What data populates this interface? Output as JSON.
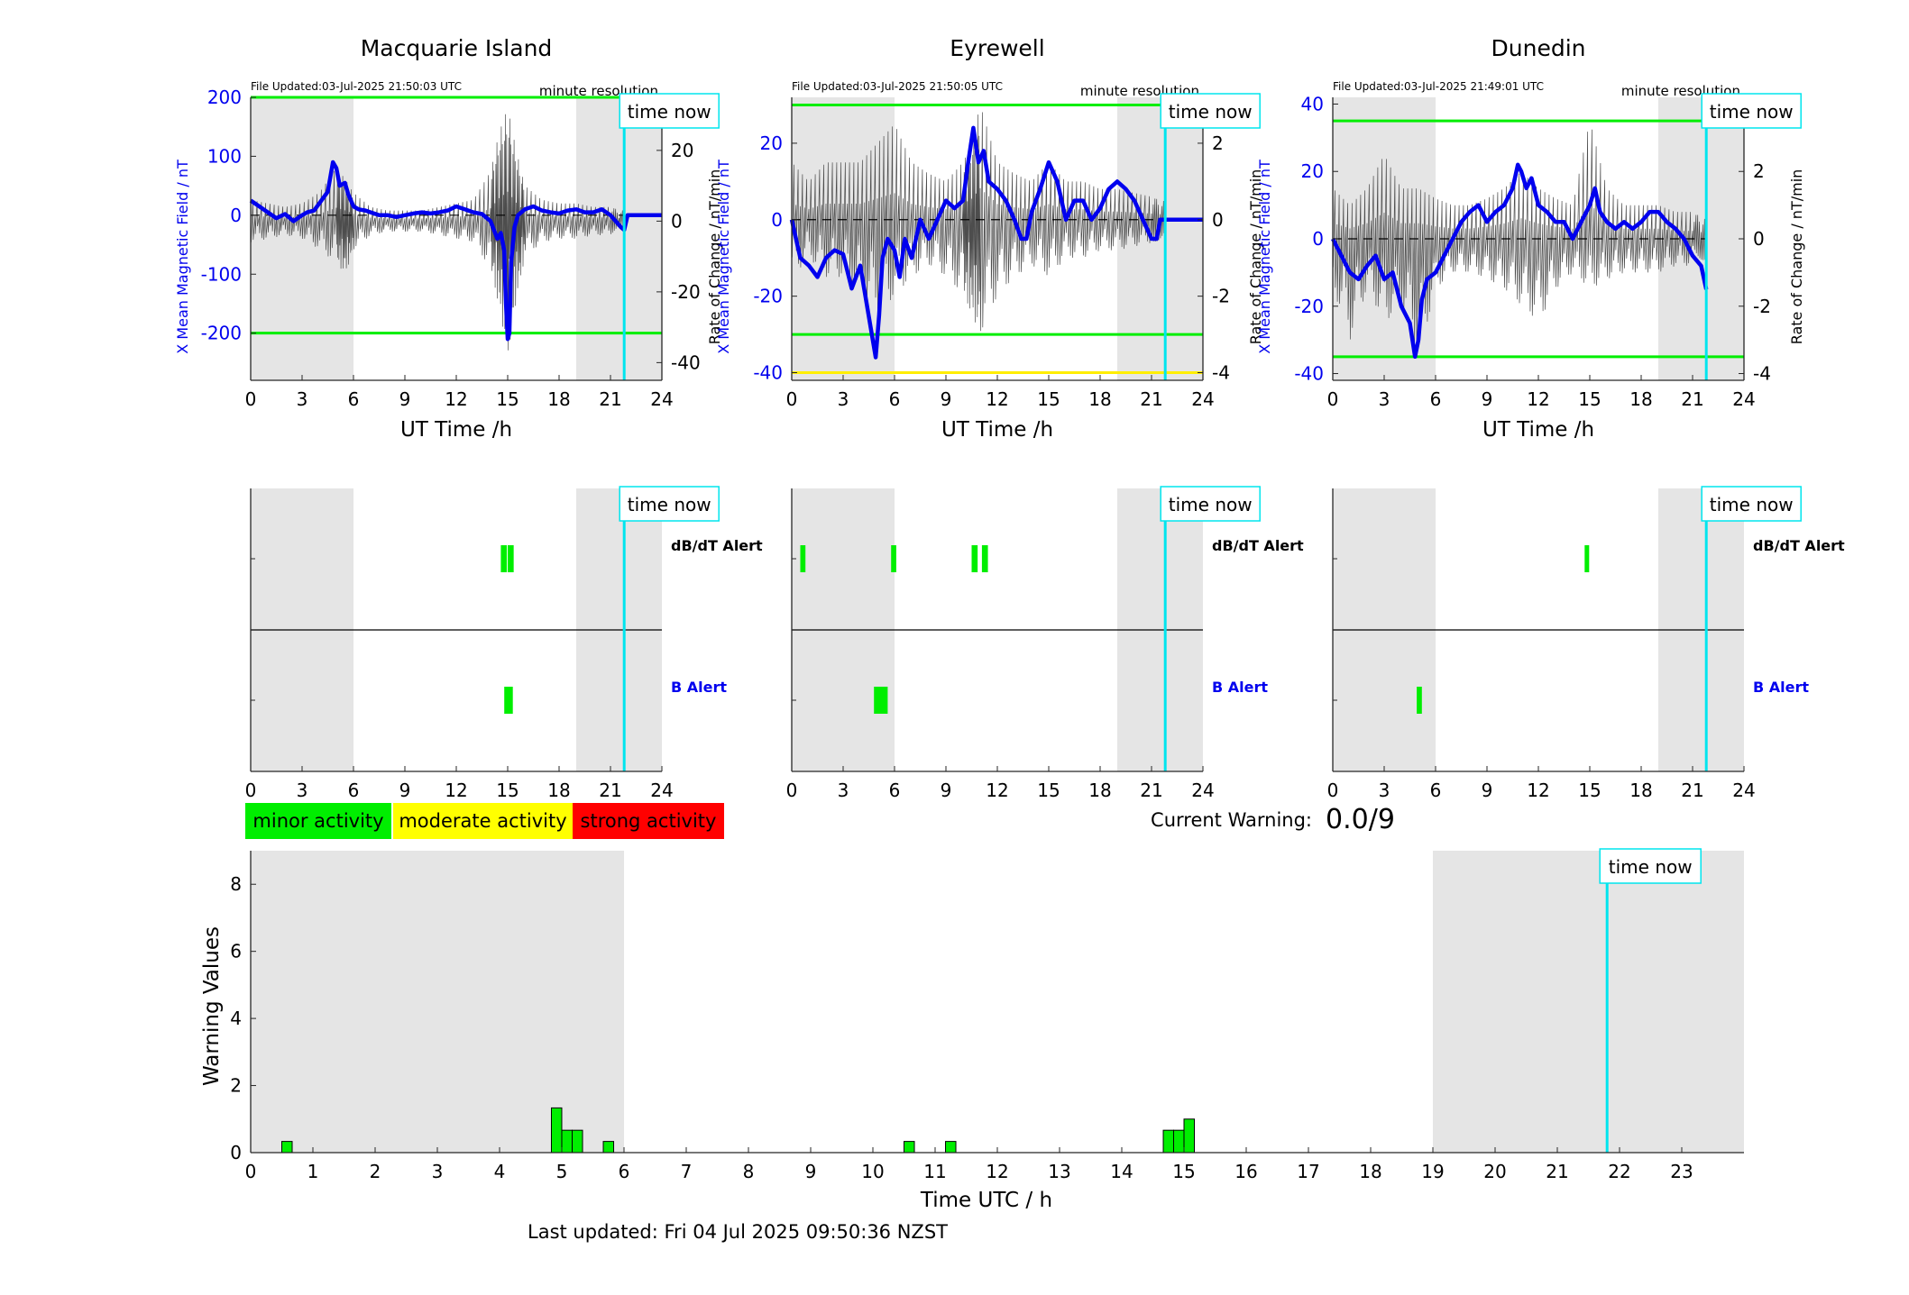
{
  "colors": {
    "night_shade": "#e5e5e5",
    "axis": "#262626",
    "mean_field": "#0000ee",
    "rate_trace": "#4d4d4d",
    "threshold_green": "#00ee00",
    "threshold_yellow": "#ffee00",
    "time_now": "#00e5ee",
    "minor": "#00ee00",
    "moderate": "#ffff00",
    "strong": "#ff0000",
    "b_alert_label": "#0000ee"
  },
  "time_now_label": "time now",
  "minute_resolution_label": "minute resolution",
  "x_ticks": [
    "0",
    "3",
    "6",
    "9",
    "12",
    "15",
    "18",
    "21",
    "24"
  ],
  "x_label": "UT Time /h",
  "left_axis_label": "X Mean Magnetic Field / nT",
  "right_axis_label": "Rate of Change / nT/min",
  "dbdt_alert_label": "dB/dT Alert",
  "b_alert_label": "B Alert",
  "legend": {
    "minor": "minor activity",
    "moderate": "moderate activity",
    "strong": "strong activity"
  },
  "current_warning": {
    "label": "Current Warning:",
    "value": "0.0/9"
  },
  "footer": "Last updated: Fri 04 Jul 2025 09:50:36 NZST",
  "chart_data": [
    {
      "type": "line",
      "title": "Macquarie Island",
      "file_updated": "File Updated:03-Jul-2025 21:50:03 UTC",
      "xlabel": "UT Time /h",
      "ylabel": "X Mean Magnetic Field / nT",
      "ylabel_right": "Rate of Change / nT/min",
      "xlim": [
        0,
        24
      ],
      "ylim": [
        -280,
        200
      ],
      "y_ticks": [
        -200,
        -100,
        0,
        100,
        200
      ],
      "ylim_right": [
        -45,
        35
      ],
      "y_ticks_right": [
        -40,
        -20,
        0,
        20
      ],
      "night_shading": [
        [
          0,
          6
        ],
        [
          19,
          24
        ]
      ],
      "time_now": 21.8,
      "thresholds": [
        {
          "value": 200,
          "color": "green"
        },
        {
          "value": -200,
          "color": "green"
        }
      ],
      "series": [
        {
          "role": "mean_field",
          "x": [
            0,
            0.5,
            1,
            1.5,
            2,
            2.5,
            3,
            3.3,
            3.7,
            4,
            4.5,
            4.8,
            5,
            5.2,
            5.5,
            5.7,
            6,
            6.3,
            6.7,
            7,
            7.5,
            8,
            8.5,
            9,
            9.5,
            10,
            10.5,
            11,
            11.5,
            12,
            12.5,
            13,
            13.5,
            14,
            14.2,
            14.4,
            14.6,
            14.8,
            14.9,
            15,
            15.1,
            15.2,
            15.4,
            15.6,
            16,
            16.5,
            17,
            17.5,
            18,
            18.5,
            19,
            19.5,
            20,
            20.5,
            21,
            21.3,
            21.6,
            21.8,
            22,
            24
          ],
          "y": [
            25,
            15,
            5,
            -5,
            2,
            -10,
            0,
            5,
            8,
            20,
            40,
            90,
            80,
            50,
            55,
            35,
            15,
            10,
            8,
            5,
            0,
            0,
            -3,
            0,
            3,
            5,
            3,
            5,
            8,
            15,
            10,
            5,
            2,
            -10,
            -25,
            -40,
            -30,
            -60,
            -150,
            -210,
            -200,
            -80,
            -20,
            0,
            10,
            15,
            8,
            5,
            3,
            8,
            10,
            5,
            5,
            10,
            0,
            -10,
            -20,
            -25,
            0,
            0
          ]
        },
        {
          "role": "rate_of_change_envelope",
          "x": [
            0,
            1,
            2,
            3,
            4,
            5,
            5.5,
            6,
            7,
            8,
            9,
            10,
            11,
            12,
            13,
            14,
            14.5,
            15,
            15.5,
            16,
            17,
            18,
            19,
            20,
            21,
            21.8
          ],
          "upper": [
            6,
            5,
            4,
            5,
            8,
            15,
            12,
            8,
            4,
            3,
            3,
            3,
            4,
            5,
            6,
            14,
            25,
            32,
            20,
            10,
            6,
            5,
            5,
            4,
            4,
            3
          ],
          "lower": [
            -6,
            -5,
            -4,
            -5,
            -8,
            -12,
            -15,
            -8,
            -4,
            -3,
            -3,
            -3,
            -4,
            -5,
            -6,
            -14,
            -25,
            -38,
            -22,
            -10,
            -6,
            -5,
            -5,
            -4,
            -4,
            -3
          ]
        }
      ],
      "alerts": {
        "dbdt": [
          [
            14.6,
            14.95
          ],
          [
            15.0,
            15.35
          ]
        ],
        "b": [
          [
            14.8,
            15.3
          ]
        ]
      }
    },
    {
      "type": "line",
      "title": "Eyrewell",
      "file_updated": "File Updated:03-Jul-2025 21:50:05 UTC",
      "xlabel": "UT Time /h",
      "ylabel": "X Mean Magnetic Field / nT",
      "ylabel_right": "Rate of Change / nT/min",
      "xlim": [
        0,
        24
      ],
      "ylim": [
        -42,
        32
      ],
      "y_ticks": [
        -40,
        -20,
        0,
        20
      ],
      "ylim_right": [
        -4.2,
        3.2
      ],
      "y_ticks_right": [
        -4,
        -2,
        0,
        2
      ],
      "night_shading": [
        [
          0,
          6
        ],
        [
          19,
          24
        ]
      ],
      "time_now": 21.8,
      "thresholds": [
        {
          "value": 30,
          "color": "green"
        },
        {
          "value": -30,
          "color": "green"
        },
        {
          "value": -40,
          "color": "yellow"
        }
      ],
      "series": [
        {
          "role": "mean_field",
          "x": [
            0,
            0.5,
            1,
            1.5,
            2,
            2.5,
            3,
            3.5,
            4,
            4.3,
            4.6,
            4.9,
            5.1,
            5.3,
            5.6,
            6,
            6.3,
            6.6,
            7,
            7.5,
            8,
            8.5,
            9,
            9.5,
            10,
            10.3,
            10.6,
            10.9,
            11.2,
            11.5,
            12,
            12.5,
            13,
            13.4,
            13.7,
            14,
            14.5,
            15,
            15.5,
            16,
            16.5,
            17,
            17.5,
            18,
            18.5,
            19,
            19.5,
            20,
            20.5,
            21,
            21.3,
            21.5,
            21.8,
            24
          ],
          "y": [
            0,
            -10,
            -12,
            -15,
            -10,
            -8,
            -9,
            -18,
            -12,
            -20,
            -28,
            -36,
            -25,
            -10,
            -5,
            -8,
            -15,
            -5,
            -10,
            0,
            -5,
            0,
            5,
            3,
            5,
            15,
            24,
            15,
            18,
            10,
            8,
            5,
            0,
            -5,
            -5,
            2,
            8,
            15,
            10,
            0,
            5,
            5,
            0,
            3,
            8,
            10,
            8,
            5,
            0,
            -5,
            -5,
            0,
            0,
            0
          ]
        },
        {
          "role": "rate_of_change_envelope",
          "x": [
            0,
            1,
            2,
            3,
            4,
            5,
            6,
            7,
            8,
            9,
            10,
            10.5,
            11,
            12,
            13,
            14,
            15,
            16,
            17,
            18,
            19,
            20,
            21,
            21.8
          ],
          "upper": [
            1.5,
            1,
            1.5,
            1.5,
            1.5,
            2,
            2.5,
            1.5,
            1.2,
            1,
            1.5,
            2,
            3,
            1.5,
            1.2,
            1,
            1.5,
            1,
            1,
            0.8,
            0.8,
            0.7,
            0.6,
            0.5
          ],
          "lower": [
            -1.5,
            -1,
            -1.5,
            -1.5,
            -2,
            -2.5,
            -2,
            -1.5,
            -1.2,
            -1.5,
            -2,
            -2.5,
            -3,
            -2,
            -1.5,
            -1.2,
            -1.5,
            -1,
            -1,
            -0.8,
            -0.8,
            -0.7,
            -0.6,
            -0.5
          ]
        }
      ],
      "alerts": {
        "dbdt": [
          [
            0.5,
            0.8
          ],
          [
            5.8,
            6.1
          ],
          [
            10.5,
            10.85
          ],
          [
            11.1,
            11.45
          ]
        ],
        "b": [
          [
            4.8,
            5.6
          ]
        ]
      }
    },
    {
      "type": "line",
      "title": "Dunedin",
      "file_updated": "File Updated:03-Jul-2025 21:49:01 UTC",
      "xlabel": "UT Time /h",
      "ylabel": "X Mean Magnetic Field / nT",
      "ylabel_right": "Rate of Change / nT/min",
      "xlim": [
        0,
        24
      ],
      "ylim": [
        -42,
        42
      ],
      "y_ticks": [
        -40,
        -20,
        0,
        20,
        40
      ],
      "ylim_right": [
        -4.2,
        4.2
      ],
      "y_ticks_right": [
        -4,
        -2,
        0,
        2,
        4
      ],
      "night_shading": [
        [
          0,
          6
        ],
        [
          19,
          24
        ]
      ],
      "time_now": 21.8,
      "thresholds": [
        {
          "value": 35,
          "color": "green"
        },
        {
          "value": -35,
          "color": "green"
        }
      ],
      "series": [
        {
          "role": "mean_field",
          "x": [
            0,
            0.5,
            1,
            1.5,
            2,
            2.5,
            3,
            3.5,
            4,
            4.5,
            4.8,
            5,
            5.2,
            5.5,
            6,
            6.5,
            7,
            7.5,
            8,
            8.5,
            9,
            9.5,
            10,
            10.5,
            10.8,
            11,
            11.3,
            11.6,
            12,
            12.5,
            13,
            13.5,
            14,
            14.5,
            15,
            15.3,
            15.6,
            16,
            16.5,
            17,
            17.5,
            18,
            18.5,
            19,
            19.5,
            20,
            20.5,
            21,
            21.5,
            21.8
          ],
          "y": [
            0,
            -5,
            -10,
            -12,
            -8,
            -5,
            -12,
            -10,
            -20,
            -25,
            -35,
            -30,
            -18,
            -12,
            -10,
            -5,
            0,
            5,
            8,
            10,
            5,
            8,
            10,
            15,
            22,
            20,
            15,
            18,
            10,
            8,
            5,
            5,
            0,
            5,
            10,
            15,
            8,
            5,
            3,
            5,
            3,
            5,
            8,
            8,
            5,
            3,
            0,
            -5,
            -8,
            -15
          ]
        },
        {
          "role": "rate_of_change_envelope",
          "x": [
            0,
            1,
            2,
            3,
            4,
            5,
            6,
            7,
            8,
            9,
            10,
            11,
            12,
            13,
            14,
            15,
            16,
            17,
            18,
            19,
            20,
            21,
            21.8
          ],
          "upper": [
            1.5,
            1,
            1.5,
            2.5,
            1.5,
            1.5,
            1.2,
            1,
            1,
            1.2,
            1.5,
            2,
            1.5,
            1.2,
            1,
            3.5,
            1.5,
            1,
            1,
            1,
            0.8,
            0.8,
            0.6
          ],
          "lower": [
            -1.5,
            -3,
            -1.5,
            -2.5,
            -2,
            -3.5,
            -1.5,
            -1,
            -1,
            -1.2,
            -1.5,
            -2,
            -2.5,
            -1.5,
            -1,
            -1.5,
            -1.2,
            -1,
            -1,
            -1,
            -0.8,
            -0.8,
            -0.6
          ]
        }
      ],
      "alerts": {
        "dbdt": [
          [
            14.7,
            14.95
          ]
        ],
        "b": [
          [
            4.9,
            5.2
          ]
        ]
      }
    },
    {
      "type": "bar",
      "title": "",
      "xlabel": "Time UTC / h",
      "ylabel": "Warning Values",
      "xlim": [
        0,
        24
      ],
      "ylim": [
        0,
        9
      ],
      "x_ticks": [
        0,
        1,
        2,
        3,
        4,
        5,
        6,
        7,
        8,
        9,
        10,
        11,
        12,
        13,
        14,
        15,
        16,
        17,
        18,
        19,
        20,
        21,
        22,
        23
      ],
      "y_ticks": [
        0,
        2,
        4,
        6,
        8
      ],
      "night_shading": [
        [
          0,
          6
        ],
        [
          19,
          24
        ]
      ],
      "time_now": 21.8,
      "bars": [
        {
          "x": 0.5,
          "value": 0.333
        },
        {
          "x": 4.833,
          "value": 1.333
        },
        {
          "x": 5.0,
          "value": 0.667
        },
        {
          "x": 5.167,
          "value": 0.667
        },
        {
          "x": 5.667,
          "value": 0.333
        },
        {
          "x": 10.5,
          "value": 0.333
        },
        {
          "x": 11.167,
          "value": 0.333
        },
        {
          "x": 14.667,
          "value": 0.667
        },
        {
          "x": 14.833,
          "value": 0.667
        },
        {
          "x": 15.0,
          "value": 1.0
        }
      ],
      "bar_width_h": 0.1667
    }
  ]
}
